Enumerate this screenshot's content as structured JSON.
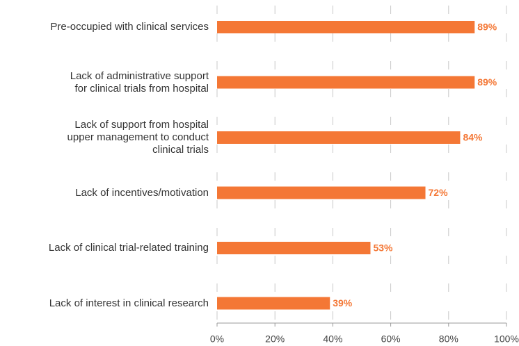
{
  "chart_data": {
    "type": "barh",
    "categories": [
      "Pre-occupied with clinical services",
      "Lack of administrative support\nfor clinical trials from hospital",
      "Lack of support from hospital\nupper management to conduct\nclinical trials",
      "Lack of incentives/motivation",
      "Lack of clinical trial-related training",
      "Lack of interest in clinical research"
    ],
    "values": [
      89,
      89,
      84,
      72,
      53,
      39
    ],
    "value_labels": [
      "89%",
      "89%",
      "84%",
      "72%",
      "53%",
      "39%"
    ],
    "color": "#f47735",
    "xlim": [
      0,
      100
    ],
    "xticks": [
      {
        "value": 0,
        "label": "0%"
      },
      {
        "value": 20,
        "label": "20%"
      },
      {
        "value": 40,
        "label": "40%"
      },
      {
        "value": 60,
        "label": "60%"
      },
      {
        "value": 80,
        "label": "80%"
      },
      {
        "value": 100,
        "label": "100%"
      }
    ],
    "grid": true
  }
}
